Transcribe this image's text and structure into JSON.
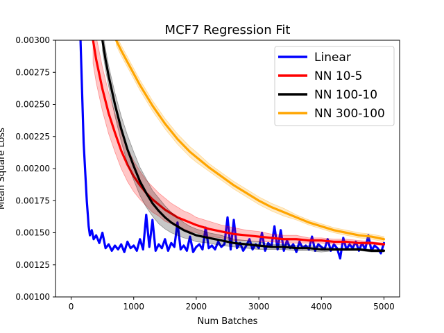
{
  "chart_data": {
    "type": "line",
    "title": "MCF7 Regression Fit",
    "xlabel": "Num Batches",
    "ylabel": "Mean Square Loss",
    "xlim": [
      -250,
      5250
    ],
    "ylim": [
      0.001,
      0.003
    ],
    "xticks": [
      0,
      1000,
      2000,
      3000,
      4000,
      5000
    ],
    "xtick_labels": [
      "0",
      "1000",
      "2000",
      "3000",
      "4000",
      "5000"
    ],
    "yticks": [
      0.001,
      0.00125,
      0.0015,
      0.00175,
      0.002,
      0.00225,
      0.0025,
      0.00275,
      0.003
    ],
    "ytick_labels": [
      "0.00100",
      "0.00125",
      "0.00150",
      "0.00175",
      "0.00200",
      "0.00225",
      "0.00250",
      "0.00275",
      "0.00300"
    ],
    "legend_position": "top-right",
    "grid": false,
    "series": [
      {
        "name": "Linear",
        "color": "#0000ff",
        "x": [
          150,
          200,
          250,
          280,
          300,
          330,
          360,
          400,
          450,
          500,
          550,
          600,
          650,
          700,
          750,
          800,
          850,
          900,
          950,
          1000,
          1050,
          1100,
          1150,
          1200,
          1250,
          1300,
          1350,
          1400,
          1450,
          1500,
          1550,
          1600,
          1650,
          1700,
          1750,
          1800,
          1850,
          1900,
          1950,
          2000,
          2050,
          2100,
          2150,
          2200,
          2250,
          2300,
          2350,
          2400,
          2450,
          2500,
          2550,
          2600,
          2650,
          2700,
          2750,
          2800,
          2850,
          2900,
          2950,
          3000,
          3050,
          3100,
          3150,
          3200,
          3250,
          3300,
          3350,
          3400,
          3450,
          3500,
          3550,
          3600,
          3650,
          3700,
          3750,
          3800,
          3850,
          3900,
          3950,
          4000,
          4050,
          4100,
          4150,
          4200,
          4250,
          4300,
          4350,
          4400,
          4450,
          4500,
          4550,
          4600,
          4650,
          4700,
          4750,
          4800,
          4850,
          4900,
          4950,
          5000
        ],
        "y": [
          0.003,
          0.0022,
          0.00175,
          0.00155,
          0.00148,
          0.00152,
          0.00145,
          0.00148,
          0.00142,
          0.0015,
          0.00138,
          0.00141,
          0.00136,
          0.0014,
          0.00137,
          0.00141,
          0.00135,
          0.00143,
          0.00138,
          0.0014,
          0.00136,
          0.00145,
          0.00137,
          0.00164,
          0.00139,
          0.0016,
          0.00136,
          0.00141,
          0.00138,
          0.00145,
          0.00136,
          0.00142,
          0.00139,
          0.00158,
          0.00137,
          0.0014,
          0.00136,
          0.00147,
          0.00135,
          0.00139,
          0.00141,
          0.00137,
          0.00154,
          0.00138,
          0.0014,
          0.00137,
          0.00143,
          0.00139,
          0.00141,
          0.00162,
          0.00137,
          0.0016,
          0.00138,
          0.00142,
          0.00136,
          0.0014,
          0.00145,
          0.00137,
          0.00141,
          0.00138,
          0.0015,
          0.00136,
          0.00142,
          0.00139,
          0.00155,
          0.00137,
          0.00152,
          0.00136,
          0.00144,
          0.00138,
          0.00141,
          0.00135,
          0.00143,
          0.00138,
          0.0014,
          0.00137,
          0.00147,
          0.00136,
          0.00141,
          0.00139,
          0.00137,
          0.00145,
          0.00136,
          0.00141,
          0.00138,
          0.0013,
          0.00146,
          0.00137,
          0.00141,
          0.00138,
          0.00143,
          0.00136,
          0.00142,
          0.00137,
          0.00148,
          0.00136,
          0.0014,
          0.00138,
          0.00134,
          0.00142
        ]
      },
      {
        "name": "NN 10-5",
        "color": "#ff0000",
        "x": [
          350,
          400,
          500,
          600,
          700,
          800,
          900,
          1000,
          1100,
          1200,
          1300,
          1400,
          1500,
          1600,
          1700,
          1800,
          1900,
          2000,
          2200,
          2400,
          2600,
          2800,
          3000,
          3200,
          3400,
          3600,
          3800,
          4000,
          4200,
          4400,
          4600,
          4800,
          5000
        ],
        "y": [
          0.003,
          0.00285,
          0.00262,
          0.00243,
          0.00228,
          0.00214,
          0.00203,
          0.00194,
          0.00187,
          0.00181,
          0.00176,
          0.00172,
          0.00168,
          0.00165,
          0.00162,
          0.0016,
          0.00158,
          0.00156,
          0.00153,
          0.00151,
          0.00149,
          0.00148,
          0.00147,
          0.00146,
          0.00145,
          0.00145,
          0.00144,
          0.00144,
          0.00143,
          0.00143,
          0.00142,
          0.00142,
          0.00141
        ],
        "band": [
          0.00018,
          0.00018,
          0.00017,
          0.00016,
          0.00015,
          0.00014,
          0.00013,
          0.00012,
          0.00011,
          0.0001,
          0.0001,
          9e-05,
          9e-05,
          8e-05,
          8e-05,
          7e-05,
          7e-05,
          6e-05,
          6e-05,
          5e-05,
          5e-05,
          4e-05,
          4e-05,
          3e-05,
          3e-05,
          3e-05,
          2e-05,
          2e-05,
          2e-05,
          2e-05,
          2e-05,
          1e-05,
          1e-05
        ]
      },
      {
        "name": "NN 100-10",
        "color": "#000000",
        "x": [
          500,
          550,
          600,
          700,
          800,
          900,
          1000,
          1100,
          1200,
          1300,
          1400,
          1500,
          1600,
          1700,
          1800,
          1900,
          2000,
          2200,
          2400,
          2600,
          2800,
          3000,
          3200,
          3400,
          3600,
          3800,
          4000,
          4200,
          4400,
          4600,
          4800,
          5000
        ],
        "y": [
          0.003,
          0.00285,
          0.00272,
          0.0025,
          0.00231,
          0.00215,
          0.00202,
          0.0019,
          0.00181,
          0.00173,
          0.00167,
          0.00162,
          0.00158,
          0.00155,
          0.00152,
          0.0015,
          0.00148,
          0.00146,
          0.00144,
          0.00142,
          0.00141,
          0.0014,
          0.00139,
          0.00139,
          0.00138,
          0.00138,
          0.00137,
          0.00137,
          0.00137,
          0.00137,
          0.00136,
          0.00136
        ],
        "band": [
          8e-05,
          8e-05,
          8e-05,
          9e-05,
          0.0001,
          0.00011,
          0.00011,
          0.00011,
          0.00011,
          0.0001,
          0.0001,
          9e-05,
          8e-05,
          7e-05,
          6e-05,
          5e-05,
          5e-05,
          4e-05,
          4e-05,
          3e-05,
          3e-05,
          3e-05,
          2e-05,
          2e-05,
          2e-05,
          2e-05,
          2e-05,
          1e-05,
          1e-05,
          1e-05,
          1e-05,
          1e-05
        ]
      },
      {
        "name": "NN 300-100",
        "color": "#ffa500",
        "x": [
          720,
          800,
          900,
          1000,
          1100,
          1200,
          1300,
          1400,
          1500,
          1600,
          1700,
          1800,
          1900,
          2000,
          2200,
          2400,
          2600,
          2800,
          3000,
          3200,
          3400,
          3600,
          3800,
          4000,
          4200,
          4400,
          4600,
          4800,
          5000
        ],
        "y": [
          0.003,
          0.00292,
          0.00283,
          0.00274,
          0.00265,
          0.00257,
          0.00249,
          0.00242,
          0.00235,
          0.00229,
          0.00223,
          0.00218,
          0.00213,
          0.00209,
          0.00201,
          0.00194,
          0.00187,
          0.00181,
          0.00175,
          0.0017,
          0.00166,
          0.00162,
          0.00158,
          0.00155,
          0.00152,
          0.0015,
          0.00148,
          0.00147,
          0.00145
        ],
        "band": [
          4e-05,
          4e-05,
          4e-05,
          4e-05,
          4e-05,
          4e-05,
          4e-05,
          4e-05,
          4e-05,
          4e-05,
          4e-05,
          4e-05,
          4e-05,
          4e-05,
          3e-05,
          3e-05,
          3e-05,
          3e-05,
          3e-05,
          3e-05,
          3e-05,
          2e-05,
          2e-05,
          2e-05,
          2e-05,
          2e-05,
          2e-05,
          2e-05,
          2e-05
        ]
      }
    ]
  }
}
